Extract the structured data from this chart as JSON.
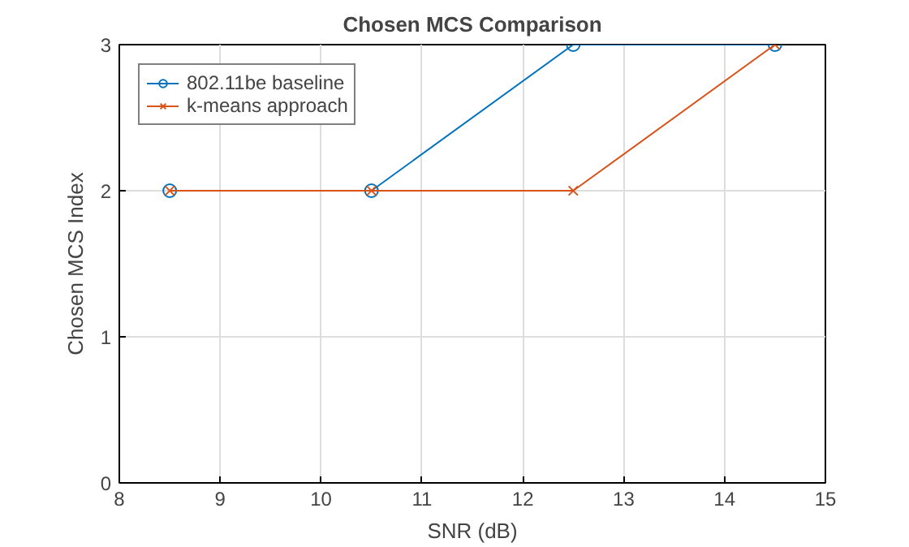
{
  "chart_data": {
    "type": "line",
    "title": "Chosen MCS Comparison",
    "xlabel": "SNR (dB)",
    "ylabel": "Chosen MCS Index",
    "x": [
      8.5,
      10.5,
      12.5,
      14.5
    ],
    "series": [
      {
        "name": "802.11be baseline",
        "color": "#0072bd",
        "marker": "circle",
        "values": [
          2,
          2,
          3,
          3
        ]
      },
      {
        "name": "k-means approach",
        "color": "#d95319",
        "marker": "cross",
        "values": [
          2,
          2,
          2,
          3
        ]
      }
    ],
    "xlim": [
      8,
      15
    ],
    "xticks": [
      8,
      9,
      10,
      11,
      12,
      13,
      14,
      15
    ],
    "ylim": [
      0,
      3
    ],
    "yticks": [
      0,
      1,
      2,
      3
    ],
    "grid": true,
    "legend": "top left",
    "line_style": "solid"
  }
}
